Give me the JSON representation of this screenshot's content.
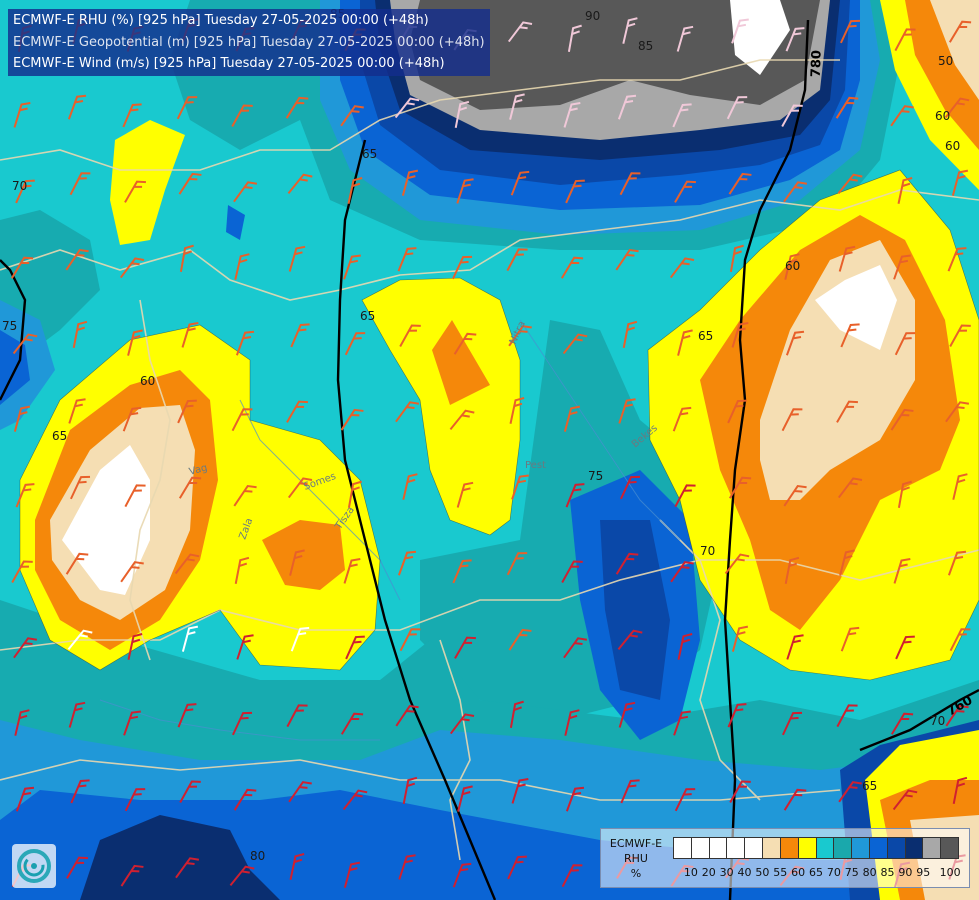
{
  "header": {
    "line1": "ECMWF-E RHU (%) [925 hPa] Tuesday 27-05-2025 00:00 (+48h)",
    "line2": "ECMWF-E Geopotential (m) [925 hPa] Tuesday 27-05-2025 00:00 (+48h)",
    "line3": "ECMWF-E Wind (m/s) [925 hPa] Tuesday 27-05-2025 00:00 (+48h)"
  },
  "legend": {
    "title": [
      "ECMWF-E",
      "RHU",
      "%"
    ],
    "colors": [
      "#ffffff",
      "#ffffff",
      "#ffffff",
      "#ffffff",
      "#ffffff",
      "#f5deb3",
      "#f5880a",
      "#ffff00",
      "#19c9cf",
      "#1aa8ac",
      "#2098d8",
      "#0a64d4",
      "#0a48a8",
      "#0a2e70",
      "#a8a8a8",
      "#585858"
    ],
    "ticks": [
      "10",
      "20",
      "30",
      "40",
      "50",
      "55",
      "60",
      "65",
      "70",
      "75",
      "80",
      "85",
      "90",
      "95",
      "100"
    ]
  },
  "contour_labels": {
    "rhu": [
      "90",
      "85",
      "65",
      "70",
      "75",
      "60",
      "65",
      "65",
      "60",
      "65",
      "75",
      "70",
      "60",
      "50",
      "60",
      "70",
      "80",
      "85",
      "65"
    ],
    "geopotential": [
      "780",
      "760"
    ]
  },
  "place_labels": [
    "Somes",
    "Tisza",
    "Zala",
    "Vag",
    "Nitra",
    "Pest",
    "Bekes"
  ],
  "logo": "ecmwf-swirl-icon"
}
